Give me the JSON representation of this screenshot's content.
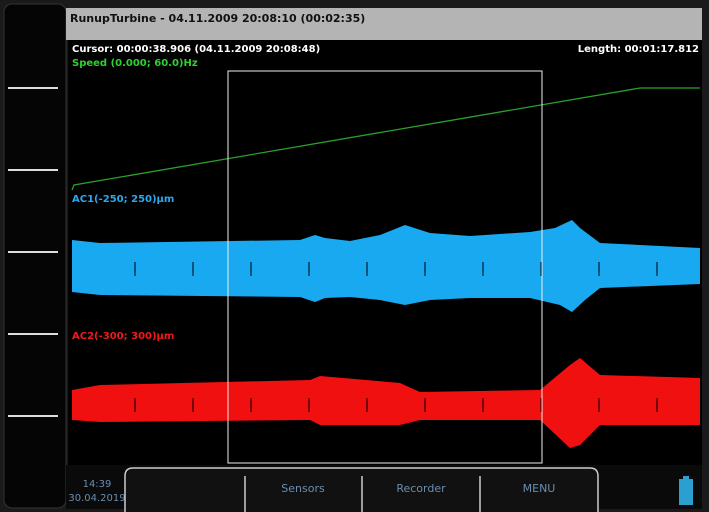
{
  "header": {
    "title": "RunupTurbine - 04.11.2009 20:08:10 (00:02:35)"
  },
  "cursor": "Cursor: 00:00:38.906 (04.11.2009 20:08:48)",
  "length": "Length: 00:01:17.812",
  "channels": [
    {
      "label": "Speed (0.000; 60.0)Hz"
    },
    {
      "label": "AC1(-250; 250)µm"
    },
    {
      "label": "AC2(-300; 300)µm"
    }
  ],
  "clock": {
    "time": "14:39",
    "date": "30.04.2019"
  },
  "buttons": [
    "Sensors",
    "Recorder",
    "MENU"
  ]
}
